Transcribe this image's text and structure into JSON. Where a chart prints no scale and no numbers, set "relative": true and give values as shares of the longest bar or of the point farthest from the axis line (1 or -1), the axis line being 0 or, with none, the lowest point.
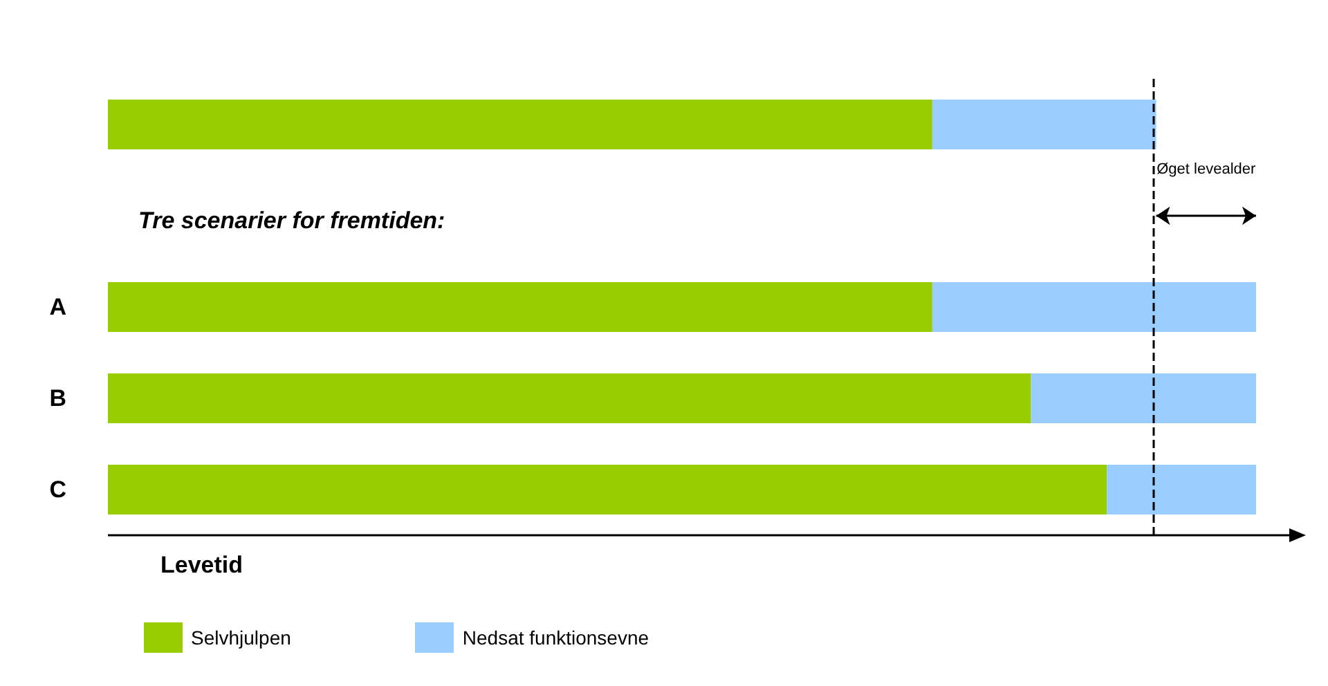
{
  "chart_data": {
    "type": "bar",
    "orientation": "horizontal",
    "stacked": true,
    "relative": true,
    "xlabel": "Levetid",
    "categories": [
      null,
      null,
      "A",
      "B",
      "C"
    ],
    "series": [
      {
        "name": "Selvhjulpen",
        "color": "#99cc00",
        "values": [
          0.718,
          null,
          0.718,
          0.804,
          0.87
        ]
      },
      {
        "name": "Nedsat funktionsevne",
        "color": "#99ccff",
        "values": [
          0.195,
          null,
          0.282,
          0.196,
          0.13
        ]
      }
    ],
    "ref_lines": [
      {
        "axis": "x",
        "value": 0.913,
        "color": "#000000",
        "line_style": "dashed"
      }
    ],
    "annotations": [
      "Tre scenarier for fremtiden:",
      "Øget levealder"
    ],
    "legend": "bottom left",
    "grid": false
  }
}
